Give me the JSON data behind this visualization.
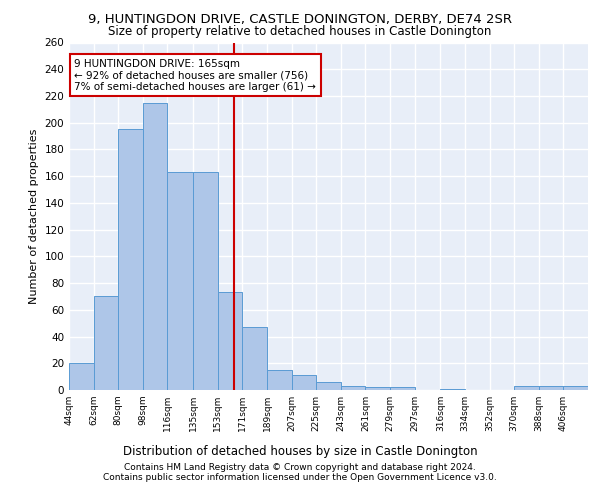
{
  "title_line1": "9, HUNTINGDON DRIVE, CASTLE DONINGTON, DERBY, DE74 2SR",
  "title_line2": "Size of property relative to detached houses in Castle Donington",
  "xlabel": "Distribution of detached houses by size in Castle Donington",
  "ylabel": "Number of detached properties",
  "footnote1": "Contains HM Land Registry data © Crown copyright and database right 2024.",
  "footnote2": "Contains public sector information licensed under the Open Government Licence v3.0.",
  "annotation_line1": "9 HUNTINGDON DRIVE: 165sqm",
  "annotation_line2": "← 92% of detached houses are smaller (756)",
  "annotation_line3": "7% of semi-detached houses are larger (61) →",
  "reference_line_x": 165,
  "categories": [
    "44sqm",
    "62sqm",
    "80sqm",
    "98sqm",
    "116sqm",
    "135sqm",
    "153sqm",
    "171sqm",
    "189sqm",
    "207sqm",
    "225sqm",
    "243sqm",
    "261sqm",
    "279sqm",
    "297sqm",
    "316sqm",
    "334sqm",
    "352sqm",
    "370sqm",
    "388sqm",
    "406sqm"
  ],
  "bin_edges": [
    44,
    62,
    80,
    98,
    116,
    135,
    153,
    171,
    189,
    207,
    225,
    243,
    261,
    279,
    297,
    316,
    334,
    352,
    370,
    388,
    406,
    424
  ],
  "values": [
    20,
    70,
    195,
    215,
    163,
    163,
    73,
    47,
    15,
    11,
    6,
    3,
    2,
    2,
    0,
    1,
    0,
    0,
    3,
    3,
    3
  ],
  "bar_color": "#aec6e8",
  "bar_edge_color": "#5a9bd4",
  "ref_line_color": "#cc0000",
  "box_edge_color": "#cc0000",
  "background_color": "#e8eef8",
  "grid_color": "#ffffff",
  "title_fontsize": 9.5,
  "subtitle_fontsize": 8.5,
  "xlabel_fontsize": 8.5,
  "ylabel_fontsize": 8,
  "footnote_fontsize": 6.5,
  "annotation_fontsize": 7.5,
  "ylim": [
    0,
    260
  ],
  "yticks": [
    0,
    20,
    40,
    60,
    80,
    100,
    120,
    140,
    160,
    180,
    200,
    220,
    240,
    260
  ]
}
